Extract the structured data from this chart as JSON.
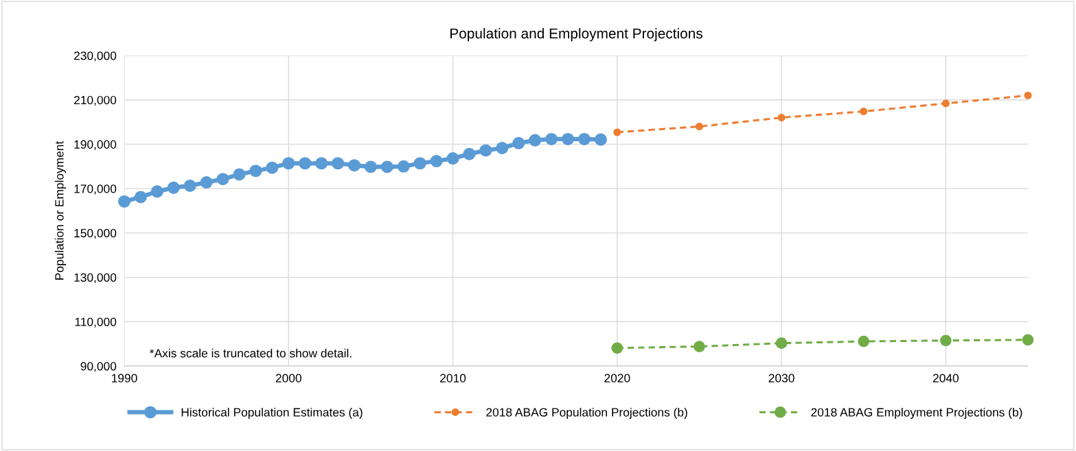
{
  "chart_data": {
    "type": "line",
    "title": "Population and Employment Projections",
    "ylabel": "Population or Employment",
    "annotations": [
      "*Axis scale is truncated to show detail."
    ],
    "xlim": [
      1990,
      2045
    ],
    "xticks": [
      1990,
      2000,
      2010,
      2020,
      2030,
      2040
    ],
    "ylim": [
      90000,
      230000
    ],
    "yticks": [
      {
        "value": 90000,
        "label": "90,000"
      },
      {
        "value": 110000,
        "label": "110,000"
      },
      {
        "value": 130000,
        "label": "130,000"
      },
      {
        "value": 150000,
        "label": "150,000"
      },
      {
        "value": 170000,
        "label": "170,000"
      },
      {
        "value": 190000,
        "label": "190,000"
      },
      {
        "value": 210000,
        "label": "210,000"
      },
      {
        "value": 230000,
        "label": "230,000"
      }
    ],
    "grid": true,
    "legend": "bottom",
    "marker": "circle",
    "series": [
      {
        "name": "Historical Population Estimates (a)",
        "color": "#5b9bd5",
        "line_style": "solid",
        "x": [
          1990,
          1991,
          1992,
          1993,
          1994,
          1995,
          1996,
          1997,
          1998,
          1999,
          2000,
          2001,
          2002,
          2003,
          2004,
          2005,
          2006,
          2007,
          2008,
          2009,
          2010,
          2011,
          2012,
          2013,
          2014,
          2015,
          2016,
          2017,
          2018,
          2019
        ],
        "values": [
          164200,
          166200,
          168700,
          170400,
          171300,
          172800,
          174300,
          176400,
          178000,
          179400,
          181400,
          181400,
          181400,
          181400,
          180500,
          179800,
          179800,
          180000,
          181400,
          182400,
          183600,
          185600,
          187200,
          188300,
          190500,
          191800,
          192300,
          192300,
          192300,
          192100
        ]
      },
      {
        "name": "2018 ABAG Population Projections (b)",
        "color": "#ed7d31",
        "line_style": "dashed",
        "x": [
          2020,
          2025,
          2030,
          2035,
          2040,
          2045
        ],
        "values": [
          195400,
          198000,
          202000,
          204800,
          208400,
          212000
        ]
      },
      {
        "name": "2018 ABAG Employment Projections (b)",
        "color": "#70ad47",
        "line_style": "dashed",
        "x": [
          2020,
          2025,
          2030,
          2035,
          2040,
          2045
        ],
        "values": [
          98100,
          98800,
          100300,
          101100,
          101500,
          101800
        ]
      }
    ]
  }
}
